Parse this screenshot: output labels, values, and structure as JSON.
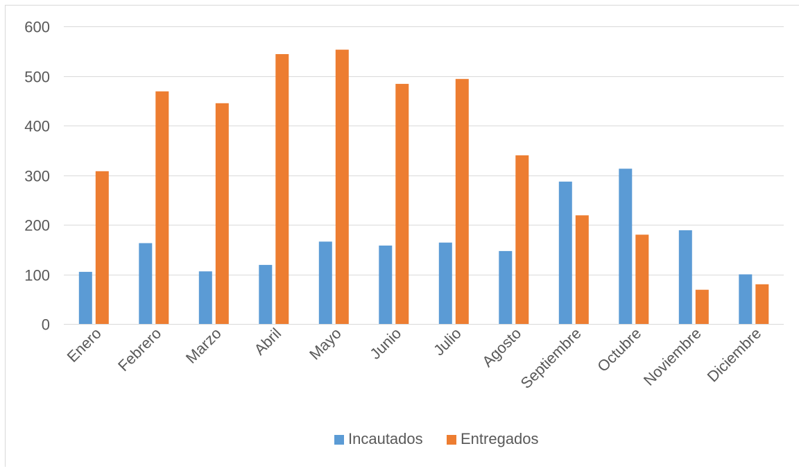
{
  "chart_data": {
    "type": "bar",
    "title": "",
    "xlabel": "",
    "ylabel": "",
    "categories": [
      "Enero",
      "Febrero",
      "Marzo",
      "Abril",
      "Mayo",
      "Junio",
      "Julio",
      "Agosto",
      "Septiembre",
      "Octubre",
      "Noviembre",
      "Diciembre"
    ],
    "series": [
      {
        "name": "Incautados",
        "color": "#5b9bd5",
        "values": [
          105,
          163,
          106,
          119,
          166,
          158,
          164,
          147,
          287,
          313,
          189,
          100
        ]
      },
      {
        "name": "Entregados",
        "color": "#ed7d31",
        "values": [
          308,
          469,
          445,
          544,
          553,
          484,
          494,
          340,
          219,
          180,
          69,
          80
        ]
      }
    ],
    "ylim": [
      0,
      600
    ],
    "yticks": [
      0,
      100,
      200,
      300,
      400,
      500,
      600
    ],
    "grid": true,
    "gridColor": "#d9d9d9",
    "legend_position": "bottom"
  }
}
